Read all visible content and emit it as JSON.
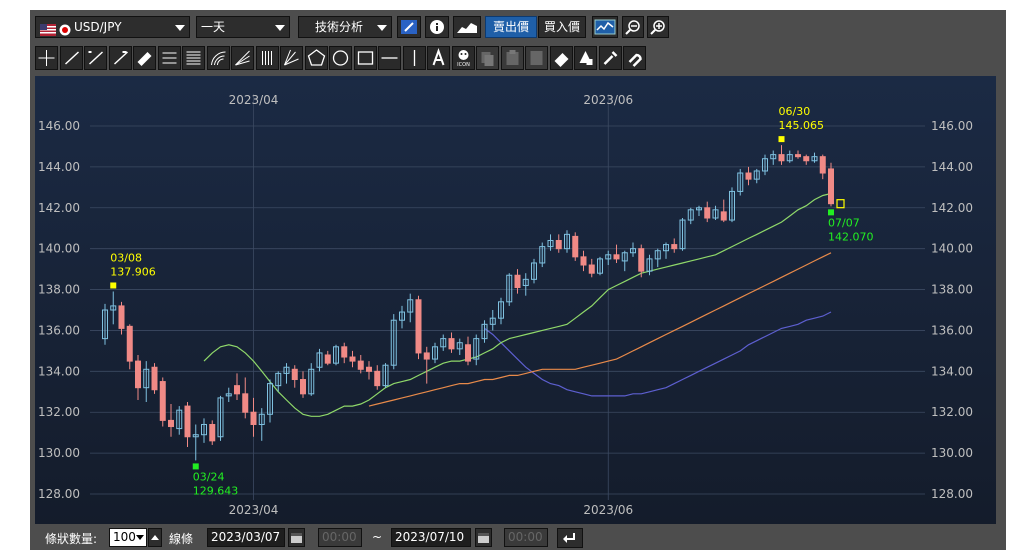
{
  "toolbar": {
    "symbol": "USD/JPY",
    "period": "一天",
    "tech_label": "技術分析",
    "bid_label": "賣出價",
    "ask_label": "買入價"
  },
  "drawing_tools": [
    "crosshair-icon",
    "trendline-icon",
    "trendline-extend-icon",
    "ray-icon",
    "ruler-icon",
    "horizontal-lines-icon",
    "parallel-lines-icon",
    "fibonacci-arc-icon",
    "fibonacci-fan-icon",
    "vertical-lines-icon",
    "gann-fan-icon",
    "pentagon-icon",
    "circle-icon",
    "rectangle-icon",
    "horizontal-line-icon",
    "vertical-line-icon",
    "text-icon",
    "stamp-icon",
    "copy-icon",
    "paste-icon",
    "cut-icon",
    "eraser-icon",
    "clear-icon",
    "settings-icon",
    "magnet-icon"
  ],
  "icon_text": "ICON",
  "bottom": {
    "bar_count_label": "條狀數量:",
    "bar_count": "100",
    "line_label": "線條",
    "start_date": "2023/03/07",
    "start_time": "00:00",
    "tilde": "~",
    "end_date": "2023/07/10",
    "end_time": "00:00"
  },
  "colors": {
    "bg": "#1a2233",
    "up": "#7fc1e0",
    "down": "#f08a86",
    "ma_short": "#8fd86a",
    "ma_mid": "#e88a4a",
    "ma_long": "#5d5fd0",
    "grid": "#3c4a62",
    "axis_text": "#bfbfbf",
    "high_marker": "#ffff00",
    "low_marker": "#22ee22"
  },
  "chart_data": {
    "type": "candlestick",
    "symbol": "USD/JPY",
    "x_ticks": [
      "2023/04",
      "2023/06"
    ],
    "y_ticks": [
      "146.00",
      "144.00",
      "142.00",
      "140.00",
      "138.00",
      "136.00",
      "134.00",
      "132.00",
      "130.00",
      "128.00"
    ],
    "ylim": [
      127.0,
      147.5
    ],
    "grid": true,
    "ohlc": [
      {
        "o": 135.6,
        "h": 137.3,
        "l": 135.3,
        "c": 137.0
      },
      {
        "o": 137.0,
        "h": 137.906,
        "l": 136.3,
        "c": 137.2
      },
      {
        "o": 137.2,
        "h": 137.4,
        "l": 135.8,
        "c": 136.1
      },
      {
        "o": 136.2,
        "h": 136.3,
        "l": 134.1,
        "c": 134.5
      },
      {
        "o": 134.5,
        "h": 134.8,
        "l": 132.6,
        "c": 133.2
      },
      {
        "o": 133.2,
        "h": 134.5,
        "l": 132.5,
        "c": 134.1
      },
      {
        "o": 134.2,
        "h": 134.4,
        "l": 132.9,
        "c": 133.1
      },
      {
        "o": 133.5,
        "h": 133.7,
        "l": 131.3,
        "c": 131.6
      },
      {
        "o": 131.6,
        "h": 132.4,
        "l": 130.8,
        "c": 131.3
      },
      {
        "o": 131.2,
        "h": 132.3,
        "l": 130.9,
        "c": 132.1
      },
      {
        "o": 132.3,
        "h": 132.5,
        "l": 130.3,
        "c": 130.8
      },
      {
        "o": 130.8,
        "h": 131.4,
        "l": 129.643,
        "c": 130.9
      },
      {
        "o": 130.9,
        "h": 131.7,
        "l": 130.5,
        "c": 131.4
      },
      {
        "o": 131.4,
        "h": 131.6,
        "l": 130.4,
        "c": 130.6
      },
      {
        "o": 130.8,
        "h": 132.8,
        "l": 130.6,
        "c": 132.7
      },
      {
        "o": 132.8,
        "h": 133.2,
        "l": 132.5,
        "c": 132.9
      },
      {
        "o": 133.3,
        "h": 133.9,
        "l": 132.6,
        "c": 132.9
      },
      {
        "o": 132.9,
        "h": 133.7,
        "l": 131.7,
        "c": 132.0
      },
      {
        "o": 132.0,
        "h": 132.7,
        "l": 130.8,
        "c": 131.4
      },
      {
        "o": 131.4,
        "h": 132.2,
        "l": 130.6,
        "c": 131.9
      },
      {
        "o": 131.9,
        "h": 133.6,
        "l": 131.5,
        "c": 133.4
      },
      {
        "o": 133.3,
        "h": 134.0,
        "l": 133.0,
        "c": 133.9
      },
      {
        "o": 133.9,
        "h": 134.4,
        "l": 133.4,
        "c": 134.2
      },
      {
        "o": 134.1,
        "h": 134.3,
        "l": 133.2,
        "c": 133.6
      },
      {
        "o": 133.6,
        "h": 134.0,
        "l": 132.7,
        "c": 132.9
      },
      {
        "o": 132.9,
        "h": 134.4,
        "l": 132.8,
        "c": 134.1
      },
      {
        "o": 134.2,
        "h": 135.1,
        "l": 134.0,
        "c": 134.9
      },
      {
        "o": 134.8,
        "h": 135.0,
        "l": 134.3,
        "c": 134.4
      },
      {
        "o": 134.4,
        "h": 135.3,
        "l": 134.3,
        "c": 135.2
      },
      {
        "o": 135.2,
        "h": 135.4,
        "l": 134.4,
        "c": 134.7
      },
      {
        "o": 134.7,
        "h": 135.0,
        "l": 134.2,
        "c": 134.5
      },
      {
        "o": 134.5,
        "h": 134.8,
        "l": 133.9,
        "c": 134.1
      },
      {
        "o": 134.2,
        "h": 134.5,
        "l": 133.6,
        "c": 134.0
      },
      {
        "o": 134.0,
        "h": 134.3,
        "l": 133.1,
        "c": 133.3
      },
      {
        "o": 133.3,
        "h": 134.4,
        "l": 133.2,
        "c": 134.3
      },
      {
        "o": 134.3,
        "h": 136.8,
        "l": 134.1,
        "c": 136.5
      },
      {
        "o": 136.5,
        "h": 137.2,
        "l": 136.1,
        "c": 136.9
      },
      {
        "o": 136.9,
        "h": 137.8,
        "l": 136.4,
        "c": 137.5
      },
      {
        "o": 137.5,
        "h": 137.7,
        "l": 134.6,
        "c": 134.9
      },
      {
        "o": 134.9,
        "h": 135.2,
        "l": 133.4,
        "c": 134.6
      },
      {
        "o": 134.6,
        "h": 135.4,
        "l": 134.4,
        "c": 135.2
      },
      {
        "o": 135.2,
        "h": 135.8,
        "l": 135.0,
        "c": 135.6
      },
      {
        "o": 135.6,
        "h": 135.9,
        "l": 134.9,
        "c": 135.1
      },
      {
        "o": 135.1,
        "h": 135.6,
        "l": 134.8,
        "c": 135.4
      },
      {
        "o": 135.3,
        "h": 135.7,
        "l": 134.3,
        "c": 134.5
      },
      {
        "o": 134.6,
        "h": 135.8,
        "l": 134.3,
        "c": 135.6
      },
      {
        "o": 135.6,
        "h": 136.5,
        "l": 135.4,
        "c": 136.3
      },
      {
        "o": 136.3,
        "h": 137.0,
        "l": 136.0,
        "c": 136.6
      },
      {
        "o": 136.6,
        "h": 137.6,
        "l": 136.3,
        "c": 137.4
      },
      {
        "o": 137.4,
        "h": 138.8,
        "l": 137.2,
        "c": 138.7
      },
      {
        "o": 138.7,
        "h": 139.0,
        "l": 137.8,
        "c": 138.1
      },
      {
        "o": 138.2,
        "h": 138.8,
        "l": 137.7,
        "c": 138.5
      },
      {
        "o": 138.5,
        "h": 139.5,
        "l": 138.3,
        "c": 139.3
      },
      {
        "o": 139.3,
        "h": 140.3,
        "l": 139.1,
        "c": 140.1
      },
      {
        "o": 140.1,
        "h": 140.7,
        "l": 139.9,
        "c": 140.4
      },
      {
        "o": 140.4,
        "h": 140.7,
        "l": 139.8,
        "c": 140.0
      },
      {
        "o": 140.0,
        "h": 140.9,
        "l": 139.8,
        "c": 140.7
      },
      {
        "o": 140.6,
        "h": 140.8,
        "l": 139.4,
        "c": 139.6
      },
      {
        "o": 139.6,
        "h": 139.9,
        "l": 138.9,
        "c": 139.2
      },
      {
        "o": 139.2,
        "h": 139.5,
        "l": 138.6,
        "c": 138.8
      },
      {
        "o": 138.8,
        "h": 139.6,
        "l": 138.7,
        "c": 139.5
      },
      {
        "o": 139.5,
        "h": 139.9,
        "l": 139.2,
        "c": 139.7
      },
      {
        "o": 139.7,
        "h": 140.2,
        "l": 139.3,
        "c": 139.5
      },
      {
        "o": 139.4,
        "h": 139.9,
        "l": 138.9,
        "c": 139.8
      },
      {
        "o": 139.8,
        "h": 140.3,
        "l": 139.6,
        "c": 140.0
      },
      {
        "o": 140.0,
        "h": 140.2,
        "l": 138.6,
        "c": 138.9
      },
      {
        "o": 138.9,
        "h": 139.7,
        "l": 138.7,
        "c": 139.5
      },
      {
        "o": 139.5,
        "h": 140.0,
        "l": 139.1,
        "c": 139.9
      },
      {
        "o": 139.9,
        "h": 140.3,
        "l": 139.5,
        "c": 140.2
      },
      {
        "o": 140.2,
        "h": 140.5,
        "l": 139.8,
        "c": 140.0
      },
      {
        "o": 140.0,
        "h": 141.5,
        "l": 139.9,
        "c": 141.4
      },
      {
        "o": 141.4,
        "h": 142.0,
        "l": 141.2,
        "c": 141.9
      },
      {
        "o": 141.9,
        "h": 142.1,
        "l": 141.6,
        "c": 142.0
      },
      {
        "o": 142.0,
        "h": 142.3,
        "l": 141.3,
        "c": 141.5
      },
      {
        "o": 141.5,
        "h": 142.1,
        "l": 141.4,
        "c": 141.9
      },
      {
        "o": 141.8,
        "h": 142.4,
        "l": 141.3,
        "c": 141.4
      },
      {
        "o": 141.4,
        "h": 143.0,
        "l": 141.3,
        "c": 142.8
      },
      {
        "o": 142.8,
        "h": 143.9,
        "l": 142.6,
        "c": 143.7
      },
      {
        "o": 143.7,
        "h": 144.0,
        "l": 143.1,
        "c": 143.4
      },
      {
        "o": 143.4,
        "h": 143.9,
        "l": 143.2,
        "c": 143.8
      },
      {
        "o": 143.8,
        "h": 144.6,
        "l": 143.6,
        "c": 144.4
      },
      {
        "o": 144.4,
        "h": 144.8,
        "l": 144.1,
        "c": 144.6
      },
      {
        "o": 144.6,
        "h": 145.065,
        "l": 144.1,
        "c": 144.3
      },
      {
        "o": 144.3,
        "h": 144.8,
        "l": 144.2,
        "c": 144.6
      },
      {
        "o": 144.6,
        "h": 144.8,
        "l": 144.4,
        "c": 144.5
      },
      {
        "o": 144.5,
        "h": 144.6,
        "l": 144.1,
        "c": 144.3
      },
      {
        "o": 144.3,
        "h": 144.7,
        "l": 144.2,
        "c": 144.5
      },
      {
        "o": 144.5,
        "h": 144.6,
        "l": 143.4,
        "c": 143.7
      },
      {
        "o": 143.9,
        "h": 144.2,
        "l": 142.07,
        "c": 142.2
      }
    ],
    "ma_short": [
      134.5,
      134.9,
      135.2,
      135.3,
      135.2,
      134.9,
      134.5,
      134.0,
      133.5,
      133.0,
      132.6,
      132.2,
      131.9,
      131.8,
      131.8,
      131.9,
      132.1,
      132.3,
      132.3,
      132.4,
      132.6,
      132.9,
      133.2,
      133.4,
      133.5,
      133.6,
      133.8,
      134.0,
      134.2,
      134.4,
      134.5,
      134.5,
      134.6,
      134.7,
      134.9,
      135.1,
      135.4,
      135.6,
      135.7,
      135.8,
      135.9,
      136.0,
      136.1,
      136.2,
      136.3,
      136.6,
      136.9,
      137.2,
      137.6,
      138.0,
      138.2,
      138.4,
      138.6,
      138.8,
      138.9,
      139.0,
      139.1,
      139.2,
      139.3,
      139.4,
      139.5,
      139.6,
      139.7,
      139.9,
      140.1,
      140.3,
      140.5,
      140.7,
      140.9,
      141.1,
      141.3,
      141.6,
      141.9,
      142.1,
      142.4,
      142.6,
      142.7
    ],
    "ma_mid": [
      132.3,
      132.4,
      132.5,
      132.6,
      132.7,
      132.8,
      132.9,
      133.0,
      133.1,
      133.2,
      133.3,
      133.4,
      133.4,
      133.5,
      133.6,
      133.6,
      133.7,
      133.8,
      133.8,
      133.9,
      134.0,
      134.1,
      134.1,
      134.1,
      134.1,
      134.1,
      134.2,
      134.3,
      134.4,
      134.5,
      134.6,
      134.8,
      135.0,
      135.2,
      135.4,
      135.6,
      135.8,
      136.0,
      136.2,
      136.4,
      136.6,
      136.8,
      137.0,
      137.2,
      137.4,
      137.6,
      137.8,
      138.0,
      138.2,
      138.4,
      138.6,
      138.8,
      139.0,
      139.2,
      139.4,
      139.6,
      139.8
    ],
    "ma_long": [
      136.1,
      135.8,
      135.4,
      135.0,
      134.6,
      134.2,
      133.9,
      133.6,
      133.4,
      133.3,
      133.1,
      133.0,
      132.9,
      132.8,
      132.8,
      132.8,
      132.8,
      132.8,
      132.9,
      132.9,
      133.0,
      133.1,
      133.2,
      133.4,
      133.6,
      133.8,
      134.0,
      134.2,
      134.4,
      134.6,
      134.8,
      135.0,
      135.3,
      135.5,
      135.7,
      135.9,
      136.1,
      136.2,
      136.3,
      136.5,
      136.6,
      136.7,
      136.9
    ],
    "annotations": [
      {
        "date": "03/08",
        "price": "137.906",
        "type": "high"
      },
      {
        "date": "03/24",
        "price": "129.643",
        "type": "low"
      },
      {
        "date": "06/30",
        "price": "145.065",
        "type": "high"
      },
      {
        "date": "07/07",
        "price": "142.070",
        "type": "low"
      }
    ]
  }
}
